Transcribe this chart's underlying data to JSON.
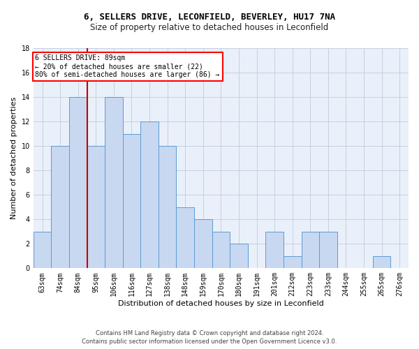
{
  "title1": "6, SELLERS DRIVE, LECONFIELD, BEVERLEY, HU17 7NA",
  "title2": "Size of property relative to detached houses in Leconfield",
  "xlabel": "Distribution of detached houses by size in Leconfield",
  "ylabel": "Number of detached properties",
  "categories": [
    "63sqm",
    "74sqm",
    "84sqm",
    "95sqm",
    "106sqm",
    "116sqm",
    "127sqm",
    "138sqm",
    "148sqm",
    "159sqm",
    "170sqm",
    "180sqm",
    "191sqm",
    "201sqm",
    "212sqm",
    "223sqm",
    "233sqm",
    "244sqm",
    "255sqm",
    "265sqm",
    "276sqm"
  ],
  "bar_heights": [
    3,
    10,
    14,
    10,
    14,
    11,
    12,
    10,
    5,
    4,
    3,
    2,
    0,
    3,
    1,
    3,
    3,
    0,
    0,
    1,
    0
  ],
  "bar_color": "#c8d8f0",
  "bar_edge_color": "#5b9bd5",
  "vline_color": "#cc0000",
  "vline_x_index": 2.5,
  "ylim": [
    0,
    18
  ],
  "yticks": [
    0,
    2,
    4,
    6,
    8,
    10,
    12,
    14,
    16,
    18
  ],
  "annotation_line1": "6 SELLERS DRIVE: 89sqm",
  "annotation_line2": "← 20% of detached houses are smaller (22)",
  "annotation_line3": "80% of semi-detached houses are larger (86) →",
  "footer1": "Contains HM Land Registry data © Crown copyright and database right 2024.",
  "footer2": "Contains public sector information licensed under the Open Government Licence v3.0.",
  "plot_bg": "#eaf0fa",
  "grid_color": "#c5cfe0",
  "title1_fontsize": 9,
  "title2_fontsize": 8.5,
  "ylabel_fontsize": 8,
  "xlabel_fontsize": 8,
  "tick_fontsize": 7,
  "annot_fontsize": 7,
  "footer_fontsize": 6
}
